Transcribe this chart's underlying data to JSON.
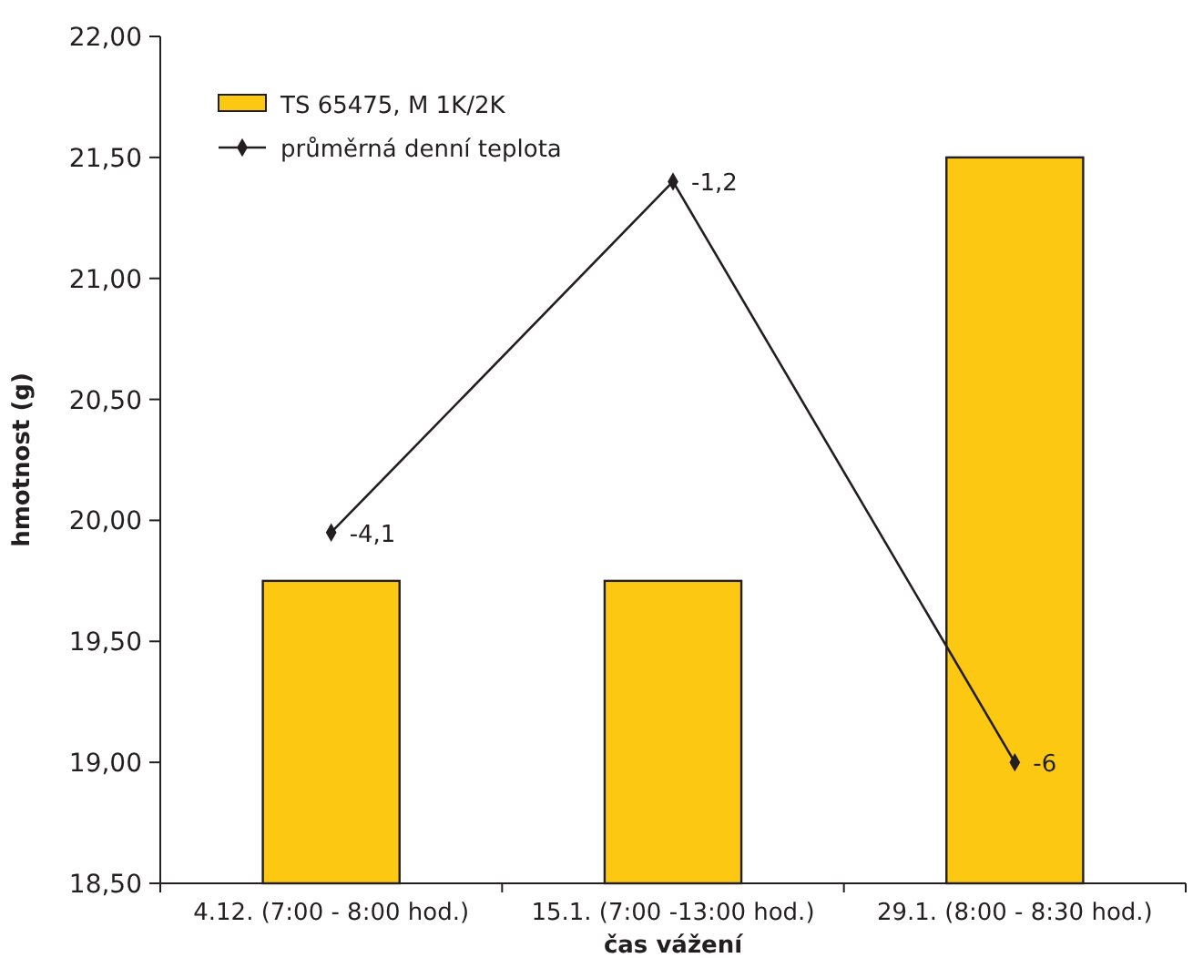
{
  "chart_data": {
    "type": "bar",
    "xlabel": "čas vážení",
    "ylabel": "hmotnost (g)",
    "categories": [
      "4.12. (7:00 - 8:00 hod.)",
      "15.1. (7:00 -13:00 hod.)",
      "29.1. (8:00 - 8:30 hod.)"
    ],
    "series": [
      {
        "name": "TS 65475, M 1K/2K",
        "color": "#fcc812",
        "values": [
          19.75,
          19.75,
          21.5
        ]
      },
      {
        "name": "průměrná denní teplota",
        "type": "line",
        "axis": "y2",
        "color": "#231f20",
        "values": [
          -4.1,
          -1.2,
          -6
        ],
        "value_labels": [
          "-4,1",
          "-1,2",
          "-6"
        ],
        "marker": "diamond"
      }
    ],
    "ylim": [
      18.5,
      22
    ],
    "yticks": [
      {
        "value": 18.5,
        "label": "18,50"
      },
      {
        "value": 19,
        "label": "19,00"
      },
      {
        "value": 19.5,
        "label": "19,50"
      },
      {
        "value": 20,
        "label": "20,00"
      },
      {
        "value": 20.5,
        "label": "20,50"
      },
      {
        "value": 21,
        "label": "21,00"
      },
      {
        "value": 21.5,
        "label": "21,50"
      },
      {
        "value": 22,
        "label": "22,00"
      }
    ],
    "y2lim": [
      -7,
      0
    ],
    "legend": "top left",
    "grid": false
  }
}
